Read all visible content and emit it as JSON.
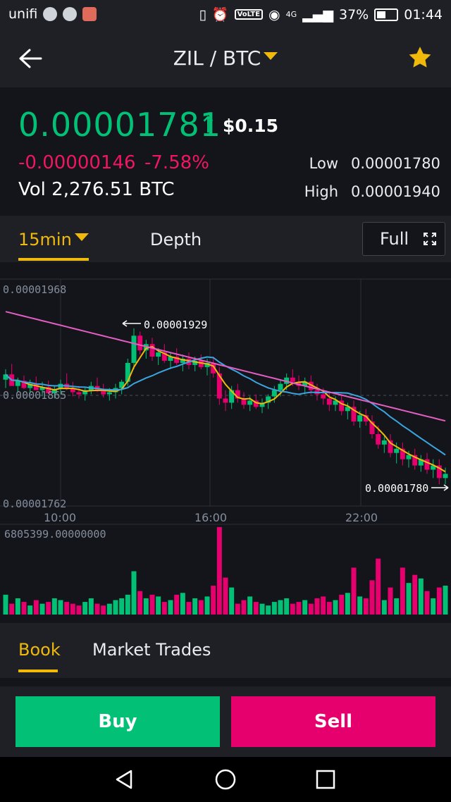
{
  "status_bar": {
    "carrier": "unifi",
    "network": "4G",
    "volte": "VoLTE",
    "battery": "37%",
    "time": "01:44",
    "icons": [
      "wechat-icon",
      "telegram-icon",
      "app-icon",
      "vibrate-icon",
      "alarm-icon",
      "eye-icon",
      "signal-icon",
      "battery-icon"
    ]
  },
  "header": {
    "pair": "ZIL / BTC",
    "icons": [
      "back-arrow-icon",
      "chevron-down-icon",
      "star-icon"
    ]
  },
  "ticker": {
    "price": "0.00001781",
    "direction": "up",
    "usd_price": "$0.15",
    "change": "-0.00000146",
    "change_percent": "-7.58%",
    "volume": "Vol 2,276.51 BTC",
    "low_label": "Low",
    "low_value": "0.00001780",
    "high_label": "High",
    "high_value": "0.00001940"
  },
  "chart_tabs": {
    "interval": "15min",
    "depth": "Depth",
    "full": "Full"
  },
  "chart": {
    "price_top_label": "0.00001968",
    "price_mid_label": "0.00001865",
    "price_bottom_label": "0.00001762",
    "max_marker": "0.00001929",
    "min_marker": "0.00001780",
    "time_labels": [
      "10:00",
      "16:00",
      "22:00"
    ],
    "volume_label": "6805399.00000000"
  },
  "chart_data": {
    "type": "candlestick",
    "x_labels": [
      "10:00",
      "16:00",
      "22:00"
    ],
    "ylim": [
      1.762e-05,
      1.968e-05
    ],
    "y_tick_labels": [
      "0.00001968",
      "0.00001865",
      "0.00001762"
    ],
    "max_price": 1.929e-05,
    "min_price": 1.78e-05,
    "volume_max": 6805399,
    "ohlc_approx": [
      [
        1880,
        1890,
        1872,
        1885
      ],
      [
        1885,
        1895,
        1878,
        1874
      ],
      [
        1874,
        1882,
        1868,
        1879
      ],
      [
        1879,
        1884,
        1871,
        1872
      ],
      [
        1872,
        1880,
        1866,
        1876
      ],
      [
        1876,
        1883,
        1870,
        1870
      ],
      [
        1870,
        1878,
        1864,
        1873
      ],
      [
        1873,
        1879,
        1866,
        1867
      ],
      [
        1867,
        1874,
        1862,
        1871
      ],
      [
        1871,
        1880,
        1866,
        1876
      ],
      [
        1876,
        1886,
        1870,
        1872
      ],
      [
        1872,
        1878,
        1864,
        1868
      ],
      [
        1868,
        1874,
        1862,
        1866
      ],
      [
        1866,
        1872,
        1860,
        1870
      ],
      [
        1870,
        1878,
        1866,
        1874
      ],
      [
        1874,
        1882,
        1868,
        1869
      ],
      [
        1869,
        1876,
        1863,
        1866
      ],
      [
        1866,
        1872,
        1860,
        1868
      ],
      [
        1868,
        1876,
        1862,
        1872
      ],
      [
        1872,
        1880,
        1866,
        1878
      ],
      [
        1878,
        1900,
        1874,
        1896
      ],
      [
        1896,
        1929,
        1890,
        1922
      ],
      [
        1922,
        1926,
        1904,
        1908
      ],
      [
        1908,
        1918,
        1900,
        1914
      ],
      [
        1914,
        1920,
        1898,
        1902
      ],
      [
        1902,
        1910,
        1894,
        1906
      ],
      [
        1906,
        1914,
        1896,
        1898
      ],
      [
        1898,
        1906,
        1890,
        1902
      ],
      [
        1902,
        1910,
        1894,
        1896
      ],
      [
        1896,
        1904,
        1888,
        1900
      ],
      [
        1900,
        1906,
        1890,
        1894
      ],
      [
        1894,
        1902,
        1888,
        1898
      ],
      [
        1898,
        1904,
        1890,
        1892
      ],
      [
        1892,
        1900,
        1884,
        1896
      ],
      [
        1896,
        1902,
        1882,
        1886
      ],
      [
        1886,
        1892,
        1856,
        1862
      ],
      [
        1862,
        1870,
        1850,
        1858
      ],
      [
        1858,
        1874,
        1852,
        1870
      ],
      [
        1870,
        1876,
        1858,
        1862
      ],
      [
        1862,
        1868,
        1852,
        1856
      ],
      [
        1856,
        1864,
        1850,
        1860
      ],
      [
        1860,
        1866,
        1852,
        1854
      ],
      [
        1854,
        1862,
        1848,
        1858
      ],
      [
        1858,
        1866,
        1852,
        1864
      ],
      [
        1864,
        1874,
        1858,
        1870
      ],
      [
        1870,
        1880,
        1864,
        1876
      ],
      [
        1876,
        1886,
        1870,
        1882
      ],
      [
        1882,
        1890,
        1874,
        1878
      ],
      [
        1878,
        1884,
        1870,
        1874
      ],
      [
        1874,
        1882,
        1866,
        1878
      ],
      [
        1878,
        1884,
        1866,
        1870
      ],
      [
        1870,
        1876,
        1860,
        1866
      ],
      [
        1866,
        1872,
        1856,
        1862
      ],
      [
        1862,
        1868,
        1850,
        1856
      ],
      [
        1856,
        1864,
        1850,
        1860
      ],
      [
        1860,
        1866,
        1846,
        1850
      ],
      [
        1850,
        1858,
        1842,
        1854
      ],
      [
        1854,
        1860,
        1836,
        1840
      ],
      [
        1840,
        1850,
        1834,
        1846
      ],
      [
        1846,
        1852,
        1836,
        1840
      ],
      [
        1840,
        1846,
        1824,
        1828
      ],
      [
        1828,
        1836,
        1814,
        1818
      ],
      [
        1818,
        1826,
        1810,
        1822
      ],
      [
        1822,
        1828,
        1806,
        1810
      ],
      [
        1810,
        1820,
        1800,
        1814
      ],
      [
        1814,
        1820,
        1798,
        1804
      ],
      [
        1804,
        1812,
        1796,
        1808
      ],
      [
        1808,
        1814,
        1794,
        1798
      ],
      [
        1798,
        1808,
        1792,
        1804
      ],
      [
        1804,
        1810,
        1790,
        1794
      ],
      [
        1794,
        1804,
        1786,
        1798
      ],
      [
        1798,
        1804,
        1780,
        1786
      ],
      [
        1786,
        1796,
        1780,
        1790
      ]
    ],
    "volume_approx": [
      0.22,
      0.12,
      0.18,
      0.14,
      0.1,
      0.16,
      0.12,
      0.14,
      0.18,
      0.16,
      0.14,
      0.12,
      0.1,
      0.14,
      0.18,
      0.12,
      0.1,
      0.12,
      0.16,
      0.18,
      0.22,
      0.48,
      0.26,
      0.18,
      0.22,
      0.2,
      0.14,
      0.16,
      0.22,
      0.24,
      0.14,
      0.18,
      0.16,
      0.2,
      0.32,
      0.97,
      0.41,
      0.3,
      0.12,
      0.16,
      0.2,
      0.14,
      0.12,
      0.1,
      0.14,
      0.16,
      0.18,
      0.12,
      0.14,
      0.16,
      0.12,
      0.18,
      0.2,
      0.14,
      0.16,
      0.22,
      0.24,
      0.52,
      0.2,
      0.18,
      0.38,
      0.62,
      0.16,
      0.3,
      0.18,
      0.52,
      0.35,
      0.44,
      0.4,
      0.26,
      0.18,
      0.3,
      0.32
    ],
    "ma_series": [
      "MA7 yellow",
      "MA25 blue",
      "MA99 pink"
    ],
    "colors": {
      "up": "#02c076",
      "down": "#e6006e",
      "ma7": "#f0b90b",
      "ma25": "#3aa5e0",
      "ma99": "#e35ec2"
    }
  },
  "book_tabs": {
    "book": "Book",
    "market_trades": "Market Trades"
  },
  "actions": {
    "buy": "Buy",
    "sell": "Sell"
  },
  "nav": {
    "icons": [
      "nav-back-icon",
      "nav-home-icon",
      "nav-recents-icon"
    ]
  },
  "colors": {
    "accent": "#f0b90b",
    "buy": "#02c076",
    "sell": "#e6006e",
    "bg": "#1e2026",
    "panel": "#14151a"
  }
}
